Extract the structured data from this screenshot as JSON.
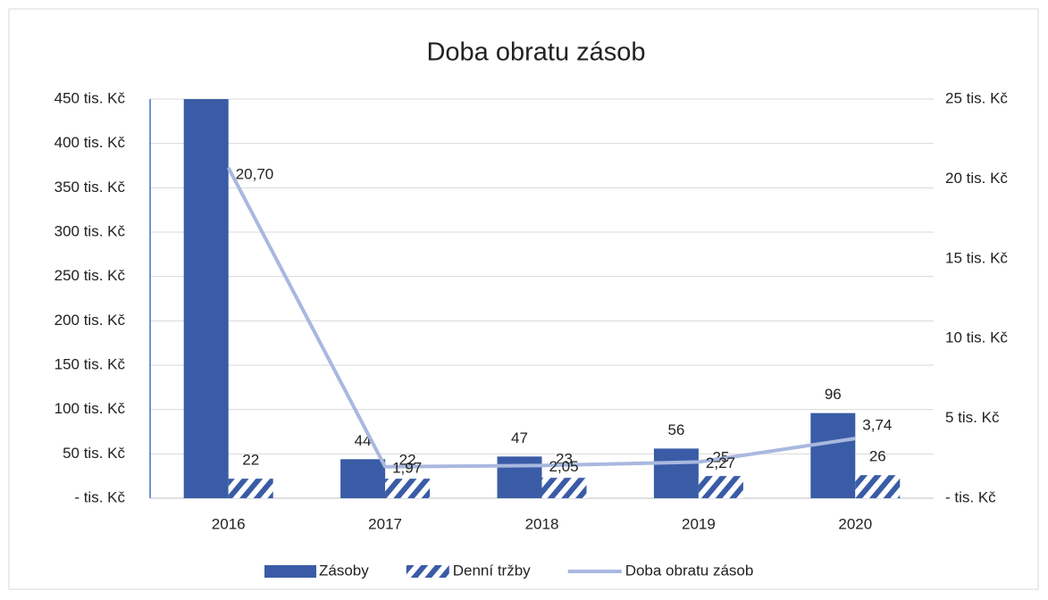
{
  "chart_data": {
    "type": "combo",
    "title": "Doba obratu zásob",
    "categories": [
      "2016",
      "2017",
      "2018",
      "2019",
      "2020"
    ],
    "series": [
      {
        "name": "Zásoby",
        "type": "bar",
        "color": "#3a5ca6",
        "values": [
          450,
          44,
          47,
          56,
          96
        ],
        "value_labels": [
          null,
          "44",
          "47",
          "56",
          "96"
        ]
      },
      {
        "name": "Denní tržby",
        "type": "bar",
        "color": "#3a5ca6",
        "pattern": "hatch",
        "values": [
          22,
          22,
          23,
          25,
          26
        ]
      },
      {
        "name": "Doba obratu zásob",
        "type": "line",
        "axis": "y2",
        "color": "#a9b8df",
        "values": [
          20.7,
          1.97,
          2.05,
          2.27,
          3.74
        ],
        "value_labels": [
          "20,70",
          "1,97",
          "2,05",
          "2,27",
          "3,74"
        ]
      }
    ],
    "ylim": [
      0,
      450
    ],
    "yticks": [
      {
        "value": 0,
        "label": "- tis. Kč"
      },
      {
        "value": 50,
        "label": "50 tis. Kč"
      },
      {
        "value": 100,
        "label": "100 tis. Kč"
      },
      {
        "value": 150,
        "label": "150 tis. Kč"
      },
      {
        "value": 200,
        "label": "200 tis. Kč"
      },
      {
        "value": 250,
        "label": "250 tis. Kč"
      },
      {
        "value": 300,
        "label": "300 tis. Kč"
      },
      {
        "value": 350,
        "label": "350 tis. Kč"
      },
      {
        "value": 400,
        "label": "400 tis. Kč"
      },
      {
        "value": 450,
        "label": "450 tis. Kč"
      }
    ],
    "y2lim": [
      0,
      25
    ],
    "y2ticks": [
      {
        "value": 0,
        "label": "- tis. Kč"
      },
      {
        "value": 5,
        "label": "5 tis. Kč"
      },
      {
        "value": 10,
        "label": "10 tis. Kč"
      },
      {
        "value": 15,
        "label": "15 tis. Kč"
      },
      {
        "value": 20,
        "label": "20 tis. Kč"
      },
      {
        "value": 25,
        "label": "25 tis. Kč"
      }
    ],
    "grid": true,
    "legend": "bottom"
  }
}
